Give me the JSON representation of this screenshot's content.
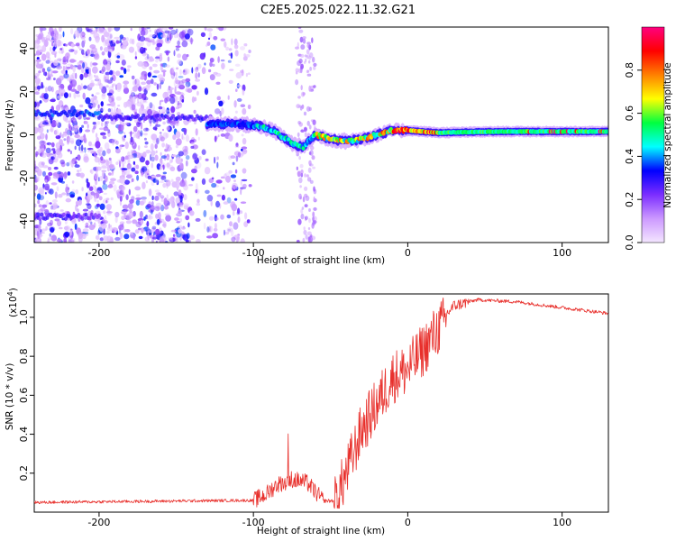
{
  "figure_title": "C2E5.2025.022.11.32.G21",
  "chart_data": [
    {
      "type": "heatmap",
      "xlabel": "Height of straight line (km)",
      "ylabel": "Frequency (Hz)",
      "xlim": [
        -242,
        130
      ],
      "ylim": [
        -50,
        50
      ],
      "xticks": [
        -200,
        -100,
        0,
        100
      ],
      "yticks": [
        -40,
        -20,
        0,
        20,
        40
      ],
      "grid": false,
      "colorbar": {
        "label": "Normalized spectral amplitude",
        "range": [
          0,
          1
        ],
        "ticks": [
          "0.0",
          "0.2",
          "0.4",
          "0.6",
          "0.8"
        ],
        "colors": [
          "#f4e6ff",
          "#cc99ff",
          "#7b2dff",
          "#0000ff",
          "#00ffff",
          "#00ff40",
          "#ffff00",
          "#ff8000",
          "#ff0000",
          "#ff0080"
        ]
      },
      "ridge": [
        {
          "x": -130,
          "y": 5
        },
        {
          "x": -110,
          "y": 5
        },
        {
          "x": -95,
          "y": 4
        },
        {
          "x": -85,
          "y": 1
        },
        {
          "x": -75,
          "y": -4
        },
        {
          "x": -68,
          "y": -6
        },
        {
          "x": -60,
          "y": 0
        },
        {
          "x": -50,
          "y": -2
        },
        {
          "x": -40,
          "y": -3
        },
        {
          "x": -30,
          "y": -2
        },
        {
          "x": -20,
          "y": 0
        },
        {
          "x": -10,
          "y": 2
        },
        {
          "x": 0,
          "y": 2
        },
        {
          "x": 20,
          "y": 1
        },
        {
          "x": 60,
          "y": 1.5
        },
        {
          "x": 100,
          "y": 1.5
        },
        {
          "x": 130,
          "y": 1.5
        }
      ]
    },
    {
      "type": "line",
      "xlabel": "Height of straight line (km)",
      "ylabel": "SNR (10 * v/v)",
      "yunit_exponent": "(x10",
      "yunit_power": "4",
      "xlim": [
        -242,
        130
      ],
      "ylim": [
        0,
        1.12
      ],
      "xticks": [
        -200,
        -100,
        0,
        100
      ],
      "yticks": [
        "0.2",
        "0.4",
        "0.6",
        "0.8",
        "1.0"
      ],
      "grid": false,
      "series": [
        {
          "color": "#e8302c",
          "trend": [
            {
              "x": -242,
              "y": 0.05
            },
            {
              "x": -110,
              "y": 0.06
            },
            {
              "x": -100,
              "y": 0.06
            },
            {
              "x": -92,
              "y": 0.09
            },
            {
              "x": -85,
              "y": 0.14
            },
            {
              "x": -75,
              "y": 0.17
            },
            {
              "x": -65,
              "y": 0.15
            },
            {
              "x": -55,
              "y": 0.06
            },
            {
              "x": -48,
              "y": 0.06
            },
            {
              "x": -40,
              "y": 0.22
            },
            {
              "x": -30,
              "y": 0.45
            },
            {
              "x": -20,
              "y": 0.58
            },
            {
              "x": -10,
              "y": 0.72
            },
            {
              "x": 0,
              "y": 0.76
            },
            {
              "x": 10,
              "y": 0.86
            },
            {
              "x": 20,
              "y": 0.97
            },
            {
              "x": 30,
              "y": 1.06
            },
            {
              "x": 45,
              "y": 1.09
            },
            {
              "x": 70,
              "y": 1.08
            },
            {
              "x": 100,
              "y": 1.05
            },
            {
              "x": 130,
              "y": 1.02
            }
          ]
        }
      ]
    }
  ]
}
